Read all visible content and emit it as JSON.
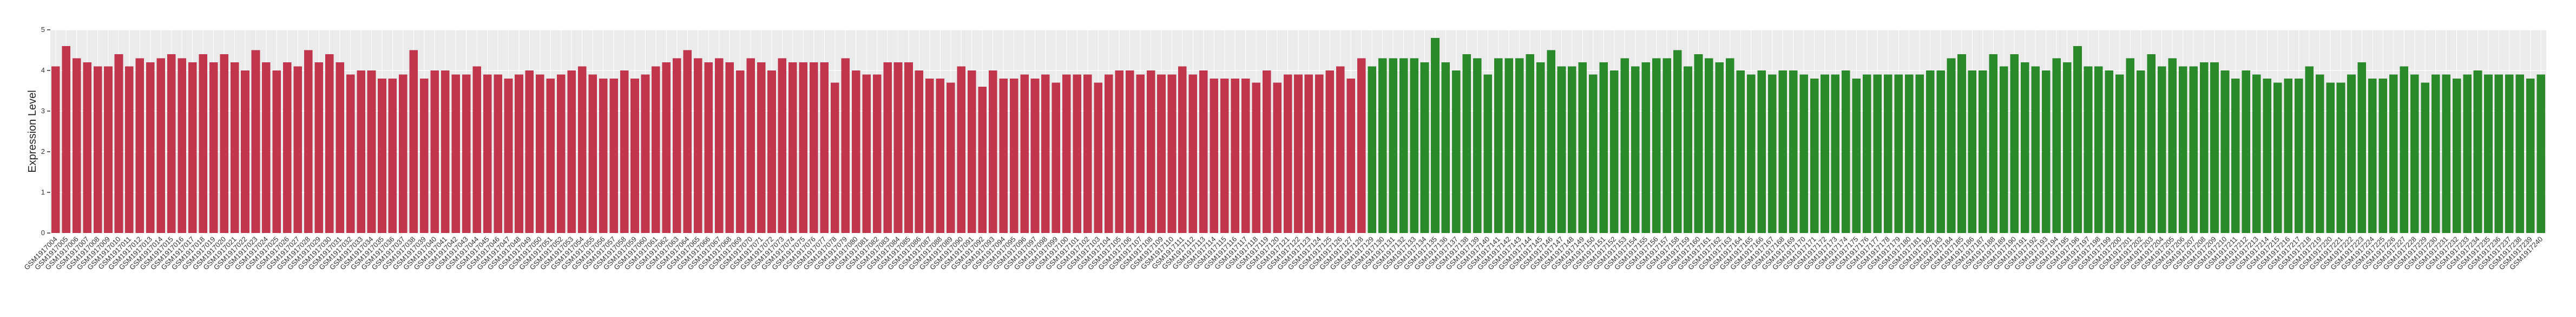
{
  "chart_data": {
    "type": "bar",
    "title": "",
    "xlabel": "",
    "ylabel": "Expression Level",
    "ylim": [
      0,
      5
    ],
    "yticks": [
      0,
      1,
      2,
      3,
      4,
      5
    ],
    "grid": true,
    "legend": "none",
    "colors": {
      "group_1": "#c1364d",
      "group_2": "#2a8a2a",
      "panel": "#ebebeb",
      "grid": "#ffffff"
    },
    "x_label_prefix": "GSM",
    "x_start_number": 1917004,
    "group_1_count": 125,
    "values": [
      4.1,
      4.6,
      4.3,
      4.2,
      4.1,
      4.1,
      4.4,
      4.1,
      4.3,
      4.2,
      4.3,
      4.4,
      4.3,
      4.2,
      4.4,
      4.2,
      4.4,
      4.2,
      4.0,
      4.5,
      4.2,
      4.0,
      4.2,
      4.1,
      4.5,
      4.2,
      4.4,
      4.2,
      3.9,
      4.0,
      4.0,
      3.8,
      3.8,
      3.9,
      4.5,
      3.8,
      4.0,
      4.0,
      3.9,
      3.9,
      4.1,
      3.9,
      3.9,
      3.8,
      3.9,
      4.0,
      3.9,
      3.8,
      3.9,
      4.0,
      4.1,
      3.9,
      3.8,
      3.8,
      4.0,
      3.8,
      3.9,
      4.1,
      4.2,
      4.3,
      4.5,
      4.3,
      4.2,
      4.3,
      4.2,
      4.0,
      4.3,
      4.2,
      4.0,
      4.3,
      4.2,
      4.2,
      4.2,
      4.2,
      3.7,
      4.3,
      4.0,
      3.9,
      3.9,
      4.2,
      4.2,
      4.2,
      4.0,
      3.8,
      3.8,
      3.7,
      4.1,
      4.0,
      3.6,
      4.0,
      3.8,
      3.8,
      3.9,
      3.8,
      3.9,
      3.7,
      3.9,
      3.9,
      3.9,
      3.7,
      3.9,
      4.0,
      4.0,
      3.9,
      4.0,
      3.9,
      3.9,
      4.1,
      3.9,
      4.0,
      3.8,
      3.8,
      3.8,
      3.8,
      3.7,
      4.0,
      3.7,
      3.9,
      3.9,
      3.9,
      3.9,
      4.0,
      4.1,
      3.8,
      4.3,
      4.1,
      4.3,
      4.3,
      4.3,
      4.3,
      4.2,
      4.8,
      4.2,
      4.0,
      4.4,
      4.3,
      3.9,
      4.3,
      4.3,
      4.3,
      4.4,
      4.2,
      4.5,
      4.1,
      4.1,
      4.2,
      3.9,
      4.2,
      4.0,
      4.3,
      4.1,
      4.2,
      4.3,
      4.3,
      4.5,
      4.1,
      4.4,
      4.3,
      4.2,
      4.3,
      4.0,
      3.9,
      4.0,
      3.9,
      4.0,
      4.0,
      3.9,
      3.8,
      3.9,
      3.9,
      4.0,
      3.8,
      3.9,
      3.9,
      3.9,
      3.9,
      3.9,
      3.9,
      4.0,
      4.0,
      4.3,
      4.4,
      4.0,
      4.0,
      4.4,
      4.1,
      4.4,
      4.2,
      4.1,
      4.0,
      4.3,
      4.2,
      4.6,
      4.1,
      4.1,
      4.0,
      3.9,
      4.3,
      4.0,
      4.4,
      4.1,
      4.3,
      4.1,
      4.1,
      4.2,
      4.2,
      4.0,
      3.8,
      4.0,
      3.9,
      3.8,
      3.7,
      3.8,
      3.8,
      4.1,
      3.9,
      3.7,
      3.7,
      3.9,
      4.2,
      3.8,
      3.8,
      3.9,
      4.1,
      3.9,
      3.7,
      3.9,
      3.9,
      3.8,
      3.9,
      4.0,
      3.9,
      3.9,
      3.9,
      3.9,
      3.8,
      3.9
    ]
  }
}
